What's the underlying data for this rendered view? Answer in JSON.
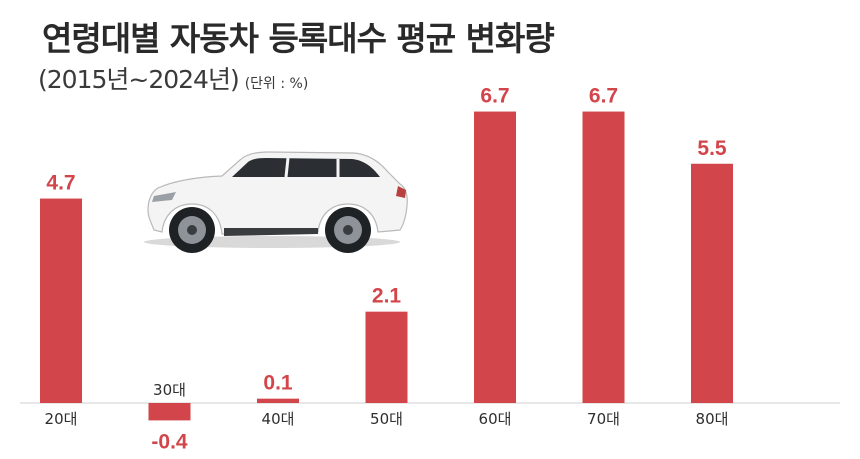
{
  "header": {
    "title": "연령대별 자동차 등록대수 평균 변화량",
    "period": "(2015년~2024년)",
    "unit": "(단위 : %)"
  },
  "illustration": {
    "icon": "white-suv-car-icon"
  },
  "colors": {
    "bar": "#d2454a",
    "value_label": "#d2454a",
    "axis": "#cfcfcf"
  },
  "chart_data": {
    "type": "bar",
    "categories": [
      "20대",
      "30대",
      "40대",
      "50대",
      "60대",
      "70대",
      "80대"
    ],
    "values": [
      4.7,
      -0.4,
      0.1,
      2.1,
      6.7,
      6.7,
      5.5
    ],
    "value_labels": [
      "4.7",
      "-0.4",
      "0.1",
      "2.1",
      "6.7",
      "6.7",
      "5.5"
    ],
    "title": "연령대별 자동차 등록대수 평균 변화량",
    "subtitle": "(2015년~2024년)",
    "unit": "(단위 : %)",
    "xlabel": "",
    "ylabel": "",
    "grid": false,
    "legend": "none"
  }
}
